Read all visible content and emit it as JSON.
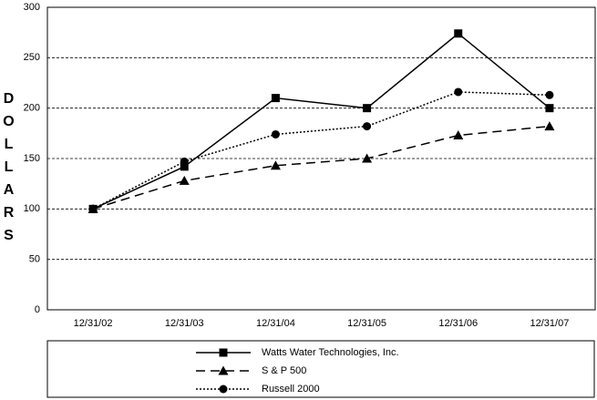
{
  "chart_data": {
    "type": "line",
    "y_label": "DOLLARS",
    "categories": [
      "12/31/02",
      "12/31/03",
      "12/31/04",
      "12/31/05",
      "12/31/06",
      "12/31/07"
    ],
    "series": [
      {
        "name": "Watts Water Technologies, Inc.",
        "color": "#000000",
        "dash": "solid",
        "marker": "square",
        "values": [
          100,
          142,
          210,
          200,
          274,
          200
        ]
      },
      {
        "name": "S & P 500",
        "color": "#000000",
        "dash": "dashed",
        "marker": "triangle",
        "values": [
          100,
          128,
          143,
          150,
          173,
          182
        ]
      },
      {
        "name": "Russell 2000",
        "color": "#000000",
        "dash": "dotted",
        "marker": "circle",
        "values": [
          100,
          147,
          174,
          182,
          216,
          213
        ]
      }
    ],
    "ylim": [
      0,
      300
    ],
    "yticks": [
      0,
      50,
      100,
      150,
      200,
      250,
      300
    ],
    "grid": true,
    "legend": "bottom"
  }
}
